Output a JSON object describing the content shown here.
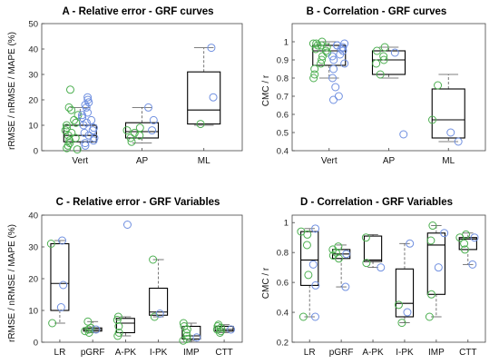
{
  "colors": {
    "green": "#4caf50",
    "blue": "#6f8fe0"
  },
  "chart_data": [
    {
      "type": "box",
      "title": "A - Relative error - GRF curves",
      "ylabel": "rRMSE / nRMSE / MAPE (%)",
      "ylim": [
        0,
        50
      ],
      "yticks": [
        0,
        10,
        20,
        30,
        40,
        50
      ],
      "categories": [
        "Vert",
        "AP",
        "ML"
      ],
      "boxes": [
        {
          "min": 0,
          "q1": 3.5,
          "median": 6,
          "q3": 10,
          "max": 17
        },
        {
          "min": 3,
          "q1": 5,
          "median": 7.5,
          "q3": 11,
          "max": 17
        },
        {
          "min": 10,
          "q1": 10.5,
          "median": 16,
          "q3": 31,
          "max": 40.5
        }
      ],
      "points": [
        {
          "green": [
            0.5,
            1,
            2,
            3,
            4,
            5,
            6,
            7,
            8,
            9,
            10,
            11,
            12,
            14,
            16,
            17,
            24
          ],
          "blue": [
            2,
            3,
            4,
            5,
            6,
            7,
            8,
            9,
            10,
            11,
            12,
            13,
            14,
            15,
            17,
            18,
            19,
            20,
            21
          ]
        },
        {
          "green": [
            3.5,
            5,
            6,
            7,
            8,
            9
          ],
          "blue": [
            8,
            12,
            17
          ]
        },
        {
          "green": [
            10.5
          ],
          "blue": [
            21,
            40.5
          ]
        }
      ]
    },
    {
      "type": "box",
      "title": "B - Correlation - GRF curves",
      "ylabel": "CMC / r",
      "ylim": [
        0.4,
        1.1
      ],
      "yticks": [
        0.4,
        0.5,
        0.6,
        0.7,
        0.8,
        0.9,
        1
      ],
      "categories": [
        "Vert",
        "AP",
        "ML"
      ],
      "boxes": [
        {
          "min": 0.8,
          "q1": 0.87,
          "median": 0.95,
          "q3": 0.98,
          "max": 1.0
        },
        {
          "min": 0.8,
          "q1": 0.82,
          "median": 0.9,
          "q3": 0.95,
          "max": 0.97
        },
        {
          "min": 0.45,
          "q1": 0.47,
          "median": 0.57,
          "q3": 0.74,
          "max": 0.82
        }
      ],
      "points": [
        {
          "green": [
            0.8,
            0.82,
            0.85,
            0.88,
            0.9,
            0.92,
            0.94,
            0.95,
            0.96,
            0.97,
            0.98,
            0.98,
            0.99,
            0.99,
            1.0
          ],
          "blue": [
            0.68,
            0.7,
            0.75,
            0.8,
            0.85,
            0.88,
            0.9,
            0.92,
            0.93,
            0.95,
            0.96,
            0.97,
            0.98,
            0.98,
            0.99
          ]
        },
        {
          "green": [
            0.82,
            0.88,
            0.9,
            0.92,
            0.95,
            0.97
          ],
          "blue": [
            0.49,
            0.94
          ]
        },
        {
          "green": [
            0.57,
            0.76
          ],
          "blue": [
            0.45,
            0.5
          ]
        }
      ]
    },
    {
      "type": "box",
      "title": "C - Relative error - GRF Variables",
      "ylabel": "rRMSE / nRMSE / MAPE (%)",
      "ylim": [
        0,
        40
      ],
      "yticks": [
        0,
        10,
        20,
        30,
        40
      ],
      "categories": [
        "LR",
        "pGRF",
        "A-PK",
        "I-PK",
        "IMP",
        "CTT"
      ],
      "boxes": [
        {
          "min": 6,
          "q1": 10,
          "median": 18.5,
          "q3": 31,
          "max": 32
        },
        {
          "min": 3,
          "q1": 3.5,
          "median": 4,
          "q3": 4.5,
          "max": 6.5
        },
        {
          "min": 2,
          "q1": 3,
          "median": 6,
          "q3": 7.5,
          "max": 8
        },
        {
          "min": 8,
          "q1": 8.5,
          "median": 9.5,
          "q3": 17,
          "max": 26
        },
        {
          "min": 0.5,
          "q1": 1,
          "median": 2,
          "q3": 5,
          "max": 6
        },
        {
          "min": 3,
          "q1": 3.5,
          "median": 4,
          "q3": 5,
          "max": 5.5
        }
      ],
      "points": [
        {
          "green": [
            6,
            31
          ],
          "blue": [
            11,
            18,
            32
          ]
        },
        {
          "green": [
            3,
            3.5,
            4,
            4.5,
            6.5
          ],
          "blue": [
            4
          ]
        },
        {
          "green": [
            2,
            3,
            5,
            7,
            8
          ],
          "blue": [
            37
          ]
        },
        {
          "green": [
            8,
            26
          ],
          "blue": [
            9
          ]
        },
        {
          "green": [
            0.5,
            1,
            2,
            3,
            4,
            5,
            6
          ],
          "blue": [
            1.5
          ]
        },
        {
          "green": [
            3,
            3.5,
            4,
            4.5,
            5,
            5.5
          ],
          "blue": [
            4
          ]
        }
      ]
    },
    {
      "type": "box",
      "title": "D - Correlation - GRF Variables",
      "ylabel": "CMC / r",
      "ylim": [
        0.2,
        1.05
      ],
      "yticks": [
        0.2,
        0.4,
        0.6,
        0.8,
        1
      ],
      "categories": [
        "LR",
        "pGRF",
        "A-PK",
        "I-PK",
        "IMP",
        "CTT"
      ],
      "boxes": [
        {
          "min": 0.37,
          "q1": 0.58,
          "median": 0.75,
          "q3": 0.94,
          "max": 0.96
        },
        {
          "min": 0.57,
          "q1": 0.76,
          "median": 0.79,
          "q3": 0.82,
          "max": 0.85
        },
        {
          "min": 0.7,
          "q1": 0.74,
          "median": 0.75,
          "q3": 0.91,
          "max": 0.92
        },
        {
          "min": 0.33,
          "q1": 0.37,
          "median": 0.46,
          "q3": 0.69,
          "max": 0.86
        },
        {
          "min": 0.37,
          "q1": 0.52,
          "median": 0.85,
          "q3": 0.93,
          "max": 0.98
        },
        {
          "min": 0.72,
          "q1": 0.82,
          "median": 0.89,
          "q3": 0.9,
          "max": 0.93
        }
      ],
      "points": [
        {
          "green": [
            0.37,
            0.65,
            0.85,
            0.92,
            0.94
          ],
          "blue": [
            0.37,
            0.58,
            0.72,
            0.96
          ]
        },
        {
          "green": [
            0.76,
            0.78,
            0.8,
            0.82,
            0.84
          ],
          "blue": [
            0.57,
            0.79
          ]
        },
        {
          "green": [
            0.73,
            0.9
          ],
          "blue": [
            0.7
          ]
        },
        {
          "green": [
            0.33,
            0.45
          ],
          "blue": [
            0.4,
            0.86
          ]
        },
        {
          "green": [
            0.37,
            0.52,
            0.88,
            0.98
          ],
          "blue": [
            0.7,
            0.93
          ]
        },
        {
          "green": [
            0.82,
            0.86,
            0.9,
            0.92
          ],
          "blue": [
            0.72,
            0.9
          ]
        }
      ]
    }
  ]
}
